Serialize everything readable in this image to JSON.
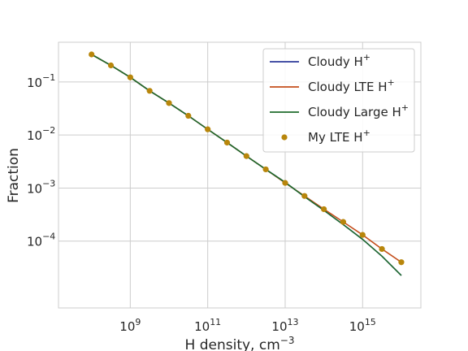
{
  "chart_data": {
    "type": "line",
    "xlabel": "H density, cm",
    "xlabel_exponent": "−3",
    "ylabel": "Fraction",
    "x_scale": "log",
    "y_scale": "log",
    "xlim": [
      14000000.0,
      3.2e+16
    ],
    "ylim": [
      5.5e-06,
      0.56
    ],
    "grid": true,
    "legend_position": "top-right",
    "x_ticks": [
      {
        "base": "10",
        "exp": "9",
        "value": 1000000000.0
      },
      {
        "base": "10",
        "exp": "11",
        "value": 100000000000.0
      },
      {
        "base": "10",
        "exp": "13",
        "value": 10000000000000.0
      },
      {
        "base": "10",
        "exp": "15",
        "value": 1000000000000000.0
      }
    ],
    "y_ticks": [
      {
        "base": "10",
        "exp": "−4",
        "value": 0.0001
      },
      {
        "base": "10",
        "exp": "−3",
        "value": 0.001
      },
      {
        "base": "10",
        "exp": "−2",
        "value": 0.01
      },
      {
        "base": "10",
        "exp": "−1",
        "value": 0.1
      }
    ],
    "x": [
      100000000.0,
      316000000.0,
      1000000000.0,
      3160000000.0,
      10000000000.0,
      31600000000.0,
      100000000000.0,
      316000000000.0,
      1000000000000.0,
      3160000000000.0,
      10000000000000.0,
      31600000000000.0,
      100000000000000.0,
      316000000000000.0,
      1000000000000000.0,
      3160000000000000.0,
      1e+16
    ],
    "series": [
      {
        "name": "Cloudy H",
        "name_sup": "+",
        "kind": "line",
        "color": "#2b3a9a",
        "values": [
          0.33,
          0.205,
          0.122,
          0.068,
          0.04,
          0.023,
          0.0128,
          0.0072,
          0.004,
          0.00225,
          0.00128,
          0.00069,
          0.00038,
          0.000205,
          0.000108,
          5.2e-05,
          2.25e-05
        ]
      },
      {
        "name": "Cloudy LTE H",
        "name_sup": "+",
        "kind": "line",
        "color": "#c44e1c",
        "values": [
          0.33,
          0.205,
          0.122,
          0.068,
          0.04,
          0.023,
          0.0128,
          0.0072,
          0.004,
          0.00225,
          0.00125,
          0.00071,
          0.0004,
          0.00023,
          0.000131,
          7.1e-05,
          4e-05
        ]
      },
      {
        "name": "Cloudy Large H",
        "name_sup": "+",
        "kind": "line",
        "color": "#1f6b2c",
        "values": [
          0.33,
          0.205,
          0.122,
          0.068,
          0.04,
          0.023,
          0.0128,
          0.0072,
          0.004,
          0.00225,
          0.00128,
          0.00069,
          0.00038,
          0.000205,
          0.000108,
          5.2e-05,
          2.25e-05
        ]
      },
      {
        "name": "My LTE H",
        "name_sup": "+",
        "kind": "scatter",
        "color": "#b8860b",
        "values": [
          0.33,
          0.205,
          0.122,
          0.068,
          0.04,
          0.023,
          0.0128,
          0.0072,
          0.004,
          0.00225,
          0.00125,
          0.00071,
          0.0004,
          0.00023,
          0.000131,
          7.1e-05,
          4e-05
        ]
      }
    ]
  }
}
